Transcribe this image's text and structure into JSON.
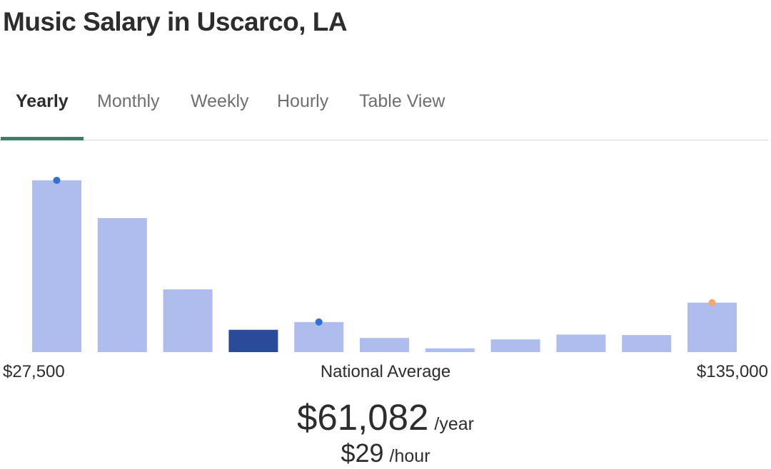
{
  "title": "Music Salary in Uscarco, LA",
  "tabs": [
    {
      "label": "Yearly",
      "active": true
    },
    {
      "label": "Monthly",
      "active": false
    },
    {
      "label": "Weekly",
      "active": false
    },
    {
      "label": "Hourly",
      "active": false
    },
    {
      "label": "Table View",
      "active": false
    }
  ],
  "colors": {
    "bar": "#aebdee",
    "bar_highlight": "#2a4a9a",
    "marker_blue": "#2f6fd6",
    "marker_orange": "#f5a86b",
    "tab_underline": "#3b7f67"
  },
  "chart_data": {
    "type": "bar",
    "x_range": [
      27500,
      135000
    ],
    "xtick_labels": {
      "min": "$27,500",
      "max": "$135,000"
    },
    "center_label": "National Average",
    "values": [
      100,
      78,
      36.5,
      13,
      17.5,
      8.2,
      2.2,
      7.4,
      10.2,
      9.9,
      28.8
    ],
    "highlight_index": 3,
    "markers": [
      {
        "bin": 0,
        "color": "blue"
      },
      {
        "bin": 4,
        "color": "blue"
      },
      {
        "bin": 10,
        "color": "orange"
      }
    ],
    "grid": false,
    "legend": "none"
  },
  "summary": {
    "yearly_value": "$61,082",
    "yearly_unit": "/year",
    "hourly_value": "$29",
    "hourly_unit": "/hour"
  }
}
